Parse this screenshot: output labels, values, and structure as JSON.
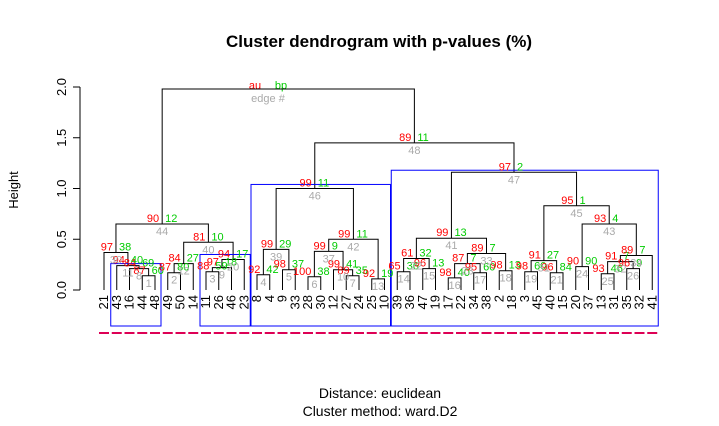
{
  "chart_data": {
    "type": "dendrogram",
    "title": "Cluster dendrogram with p-values (%)",
    "ylabel": "Height",
    "ylim": [
      0,
      2.0
    ],
    "yticks": [
      "0.0",
      "0.5",
      "1.0",
      "1.5",
      "2.0"
    ],
    "subtitle_lines": [
      "Distance:  euclidean",
      "Cluster method: ward.D2"
    ],
    "legend": {
      "au": "au",
      "bp": "bp",
      "edge": "edge #"
    },
    "colors": {
      "au": "#ff0000",
      "bp": "#00cc00",
      "edge": "#aaaaaa",
      "rect": "#0000ff",
      "tree": "#000000",
      "leaf_mark": "#dd0055"
    },
    "leaves": [
      "21",
      "43",
      "16",
      "44",
      "48",
      "49",
      "50",
      "14",
      "11",
      "26",
      "46",
      "23",
      "8",
      "4",
      "9",
      "33",
      "28",
      "30",
      "12",
      "27",
      "24",
      "25",
      "10",
      "39",
      "36",
      "47",
      "19",
      "17",
      "22",
      "34",
      "38",
      "2",
      "18",
      "3",
      "45",
      "40",
      "15",
      "20",
      "37",
      "13",
      "31",
      "35",
      "32",
      "41"
    ],
    "merges": [
      {
        "a": "L44",
        "b": "L48",
        "h": 0.14,
        "au": "87",
        "bp": "60",
        "edge": "1"
      },
      {
        "a": "L16",
        "b": "N1",
        "h": 0.21,
        "au": "84",
        "bp": "69",
        "edge": "8"
      },
      {
        "a": "L43",
        "b": "N2",
        "h": 0.24,
        "au": "94",
        "bp": "40",
        "edge": "11"
      },
      {
        "a": "L21",
        "b": "N3",
        "h": 0.37,
        "au": "97",
        "bp": "38",
        "edge": "30"
      },
      {
        "a": "L49",
        "b": "L50",
        "h": 0.17,
        "au": "87",
        "bp": "80",
        "edge": "2"
      },
      {
        "a": "N5",
        "b": "L14",
        "h": 0.26,
        "au": "84",
        "bp": "27",
        "edge": "12"
      },
      {
        "a": "L11",
        "b": "L26",
        "h": 0.18,
        "au": "88",
        "bp": "59",
        "edge": "3"
      },
      {
        "a": "N7",
        "b": "L46",
        "h": 0.22,
        "au": "97",
        "bp": "18",
        "edge": "9"
      },
      {
        "a": "N8",
        "b": "L23",
        "h": 0.3,
        "au": "94",
        "bp": "17",
        "edge": "20"
      },
      {
        "a": "N6",
        "b": "N9",
        "h": 0.47,
        "au": "81",
        "bp": "10",
        "edge": "40"
      },
      {
        "a": "N4",
        "b": "N10",
        "h": 0.65,
        "au": "90",
        "bp": "12",
        "edge": "44"
      },
      {
        "a": "L8",
        "b": "L4",
        "h": 0.15,
        "au": "92",
        "bp": "42",
        "edge": "4"
      },
      {
        "a": "L9",
        "b": "L33",
        "h": 0.2,
        "au": "98",
        "bp": "37",
        "edge": "5"
      },
      {
        "a": "N12",
        "b": "N13",
        "h": 0.4,
        "au": "99",
        "bp": "29",
        "edge": "39"
      },
      {
        "a": "L28",
        "b": "L30",
        "h": 0.13,
        "au": "100",
        "bp": "38",
        "edge": "6"
      },
      {
        "a": "L27",
        "b": "L24",
        "h": 0.14,
        "au": "89",
        "bp": "35",
        "edge": "7"
      },
      {
        "a": "L12",
        "b": "N16",
        "h": 0.2,
        "au": "99",
        "bp": "41",
        "edge": "10"
      },
      {
        "a": "N15",
        "b": "N17",
        "h": 0.38,
        "au": "99",
        "bp": "9",
        "edge": "37"
      },
      {
        "a": "L25",
        "b": "L10",
        "h": 0.11,
        "au": "92",
        "bp": "19",
        "edge": "13"
      },
      {
        "a": "N18",
        "b": "N19",
        "h": 0.5,
        "au": "99",
        "bp": "11",
        "edge": "42"
      },
      {
        "a": "N14",
        "b": "N20",
        "h": 1.0,
        "au": "99",
        "bp": "11",
        "edge": "46"
      },
      {
        "a": "L39",
        "b": "L36",
        "h": 0.18,
        "au": "65",
        "bp": "36",
        "edge": "14"
      },
      {
        "a": "L47",
        "b": "L19",
        "h": 0.21,
        "au": "96",
        "bp": "13",
        "edge": "15"
      },
      {
        "a": "N22",
        "b": "N23",
        "h": 0.31,
        "au": "61",
        "bp": "32",
        "edge": "22"
      },
      {
        "a": "L17",
        "b": "L22",
        "h": 0.12,
        "au": "98",
        "bp": "40",
        "edge": "16"
      },
      {
        "a": "L34",
        "b": "L38",
        "h": 0.17,
        "au": "95",
        "bp": "60",
        "edge": "17"
      },
      {
        "a": "N25",
        "b": "N26",
        "h": 0.26,
        "au": "87",
        "bp": "7",
        "edge": "23"
      },
      {
        "a": "L2",
        "b": "L18",
        "h": 0.19,
        "au": "98",
        "bp": "13",
        "edge": "18"
      },
      {
        "a": "N27",
        "b": "N28",
        "h": 0.36,
        "au": "89",
        "bp": "7",
        "edge": "33"
      },
      {
        "a": "N24",
        "b": "N29",
        "h": 0.51,
        "au": "99",
        "bp": "13",
        "edge": "41"
      },
      {
        "a": "L3",
        "b": "L45",
        "h": 0.18,
        "au": "98",
        "bp": "60",
        "edge": "19"
      },
      {
        "a": "L40",
        "b": "L15",
        "h": 0.17,
        "au": "96",
        "bp": "84",
        "edge": "21"
      },
      {
        "a": "N31",
        "b": "N32",
        "h": 0.29,
        "au": "91",
        "bp": "27",
        "edge": "31"
      },
      {
        "a": "L20",
        "b": "L37",
        "h": 0.23,
        "au": "90",
        "bp": "90",
        "edge": "24"
      },
      {
        "a": "L13",
        "b": "L31",
        "h": 0.16,
        "au": "93",
        "bp": "46",
        "edge": "25"
      },
      {
        "a": "L35",
        "b": "L32",
        "h": 0.21,
        "au": "96",
        "bp": "9",
        "edge": "26"
      },
      {
        "a": "N35",
        "b": "N36",
        "h": 0.28,
        "au": "91",
        "bp": "7",
        "edge": "32"
      },
      {
        "a": "N37",
        "b": "L41",
        "h": 0.34,
        "au": "89",
        "bp": "7",
        "edge": "34"
      },
      {
        "a": "N34",
        "b": "N38",
        "h": 0.65,
        "au": "93",
        "bp": "4",
        "edge": "43"
      },
      {
        "a": "N33",
        "b": "N39",
        "h": 0.83,
        "au": "95",
        "bp": "1",
        "edge": "45"
      },
      {
        "a": "N30",
        "b": "N40",
        "h": 1.16,
        "au": "97",
        "bp": "2",
        "edge": "47"
      },
      {
        "a": "N21",
        "b": "N41",
        "h": 1.45,
        "au": "89",
        "bp": "11",
        "edge": "48"
      },
      {
        "a": "N11",
        "b": "N42",
        "h": 1.98,
        "au": "",
        "bp": "",
        "edge": ""
      }
    ],
    "rectangles": [
      {
        "from": "43",
        "to": "48"
      },
      {
        "from": "11",
        "to": "23"
      },
      {
        "from": "8",
        "to": "10"
      },
      {
        "from": "39",
        "to": "41"
      }
    ]
  }
}
